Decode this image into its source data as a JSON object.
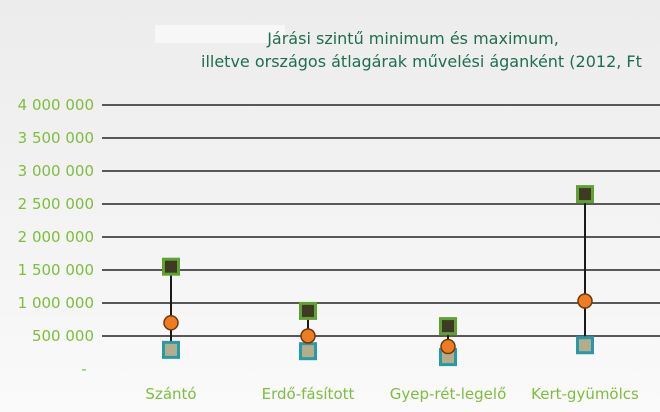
{
  "colors": {
    "title": "#1f6e4e",
    "tick_labels": "#7cbf3a",
    "gridlines": "#585858",
    "max_fill": "#3f3a23",
    "max_border": "#5ea332",
    "min_fill": "#b3ad8c",
    "min_border": "#2799a8",
    "avg_fill": "#f07c1f",
    "range_line": "#1a1a1a"
  },
  "chart_data": {
    "type": "scatter",
    "title_lines": [
      "Járási szintű minimum és maximum,",
      "illetve országos átlagárak művelési áganként (2012, Ft"
    ],
    "categories": [
      "Szántó",
      "Erdő-fásított",
      "Gyep-rét-legelő",
      "Kert-gyümölcs"
    ],
    "y_ticks": [
      {
        "value": 0,
        "label": "-"
      },
      {
        "value": 500000,
        "label": "500 000"
      },
      {
        "value": 1000000,
        "label": "1 000 000"
      },
      {
        "value": 1500000,
        "label": "1 500 000"
      },
      {
        "value": 2000000,
        "label": "2 000 000"
      },
      {
        "value": 2500000,
        "label": "2 500 000"
      },
      {
        "value": 3000000,
        "label": "3 000 000"
      },
      {
        "value": 3500000,
        "label": "3 500 000"
      },
      {
        "value": 4000000,
        "label": "4 000 000"
      }
    ],
    "ylim": [
      0,
      4000000
    ],
    "grid": true,
    "series": [
      {
        "values": [
          1550000,
          880000,
          650000,
          2650000
        ]
      },
      {
        "values": [
          700000,
          500000,
          340000,
          1030000
        ]
      },
      {
        "values": [
          290000,
          270000,
          180000,
          360000
        ]
      }
    ]
  }
}
